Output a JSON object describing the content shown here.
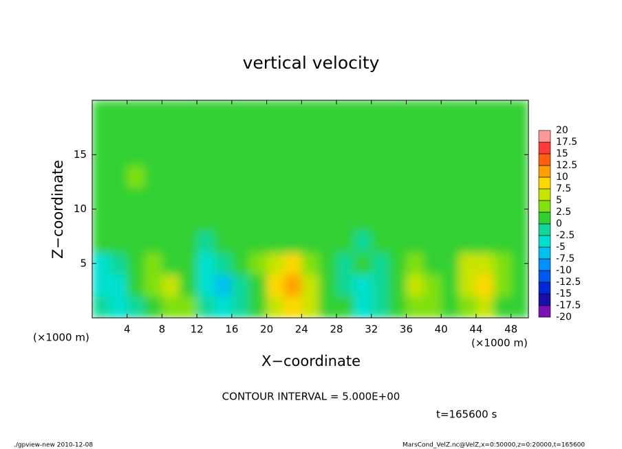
{
  "chart_data": {
    "type": "heatmap",
    "title": "vertical velocity",
    "x_label": "X−coordinate",
    "y_label": "Z−coordinate",
    "x_unit_left": "(×1000 m)",
    "x_unit_right": "(×1000 m)",
    "contour_note": "CONTOUR INTERVAL = 5.000E+00",
    "time_label": "t=165600 s",
    "footer_left": "./gpview-new   2010-12-08",
    "footer_right": "MarsCond_VelZ.nc@VelZ,x=0:50000,z=0:20000,t=165600",
    "xlim": [
      0,
      50
    ],
    "ylim": [
      0,
      20
    ],
    "xticks": [
      4,
      8,
      12,
      16,
      20,
      24,
      28,
      32,
      36,
      40,
      44,
      48
    ],
    "yticks": [
      5,
      10,
      15
    ],
    "x": [
      1,
      3,
      5,
      7,
      9,
      11,
      13,
      15,
      17,
      19,
      21,
      23,
      25,
      27,
      29,
      31,
      33,
      35,
      37,
      39,
      41,
      43,
      45,
      47,
      49
    ],
    "z": [
      1,
      3,
      5,
      7,
      9,
      11,
      13,
      15,
      17,
      19
    ],
    "field": [
      [
        -2,
        -3,
        -1,
        2,
        4,
        3,
        -2,
        -4,
        -1,
        2,
        6,
        8,
        5,
        2,
        0,
        -4,
        -2,
        1,
        3,
        3,
        1,
        4,
        5,
        2,
        1
      ],
      [
        -5,
        -3,
        1,
        4,
        5,
        2,
        -5,
        -6,
        -2,
        2,
        8,
        11,
        6,
        1,
        -1,
        -3,
        -1,
        1,
        5,
        4,
        1,
        7,
        9,
        4,
        1
      ],
      [
        -4,
        -1,
        2,
        3,
        2,
        0,
        -3,
        -2,
        0,
        3,
        7,
        8,
        3,
        0,
        -2,
        0,
        -2,
        1,
        3,
        2,
        0,
        5,
        6,
        3,
        1
      ],
      [
        1,
        0,
        1,
        2,
        1,
        0,
        -1,
        0,
        1,
        2,
        2,
        1,
        1,
        0,
        1,
        -1,
        0,
        1,
        1,
        1,
        0,
        1,
        2,
        1,
        0
      ],
      [
        1,
        1,
        2,
        1,
        0,
        1,
        1,
        0,
        1,
        1,
        2,
        1,
        0,
        1,
        1,
        2,
        1,
        1,
        0,
        1,
        1,
        1,
        2,
        1,
        1
      ],
      [
        1,
        2,
        2,
        1,
        1,
        1,
        2,
        1,
        1,
        2,
        1,
        1,
        1,
        2,
        1,
        1,
        2,
        1,
        1,
        1,
        1,
        2,
        1,
        1,
        1
      ],
      [
        2,
        2,
        3,
        2,
        1,
        1,
        1,
        2,
        2,
        1,
        1,
        1,
        1,
        2,
        2,
        1,
        1,
        1,
        2,
        2,
        1,
        1,
        2,
        2,
        2
      ],
      [
        1,
        2,
        2,
        1,
        1,
        1,
        1,
        1,
        1,
        1,
        1,
        1,
        1,
        1,
        2,
        1,
        1,
        1,
        1,
        1,
        1,
        2,
        2,
        1,
        1
      ],
      [
        1,
        1,
        1,
        1,
        1,
        1,
        2,
        1,
        1,
        1,
        1,
        1,
        1,
        1,
        1,
        1,
        1,
        1,
        1,
        2,
        1,
        1,
        1,
        1,
        1
      ],
      [
        1,
        1,
        1,
        1,
        1,
        1,
        1,
        1,
        1,
        1,
        1,
        1,
        1,
        1,
        1,
        1,
        1,
        1,
        1,
        1,
        1,
        1,
        1,
        1,
        1
      ]
    ],
    "colorbar": {
      "levels": [
        -20,
        -17.5,
        -15,
        -12.5,
        -10,
        -7.5,
        -5,
        -2.5,
        0,
        2.5,
        5,
        7.5,
        10,
        12.5,
        15,
        17.5,
        20
      ],
      "colors": [
        "#7a10b8",
        "#1a10a8",
        "#0028d8",
        "#0058f0",
        "#0090ff",
        "#00c0f0",
        "#00e0d0",
        "#10d898",
        "#30d030",
        "#80e010",
        "#c8e400",
        "#ffd800",
        "#ffa000",
        "#ff6010",
        "#ff3838",
        "#ff9898"
      ]
    }
  }
}
